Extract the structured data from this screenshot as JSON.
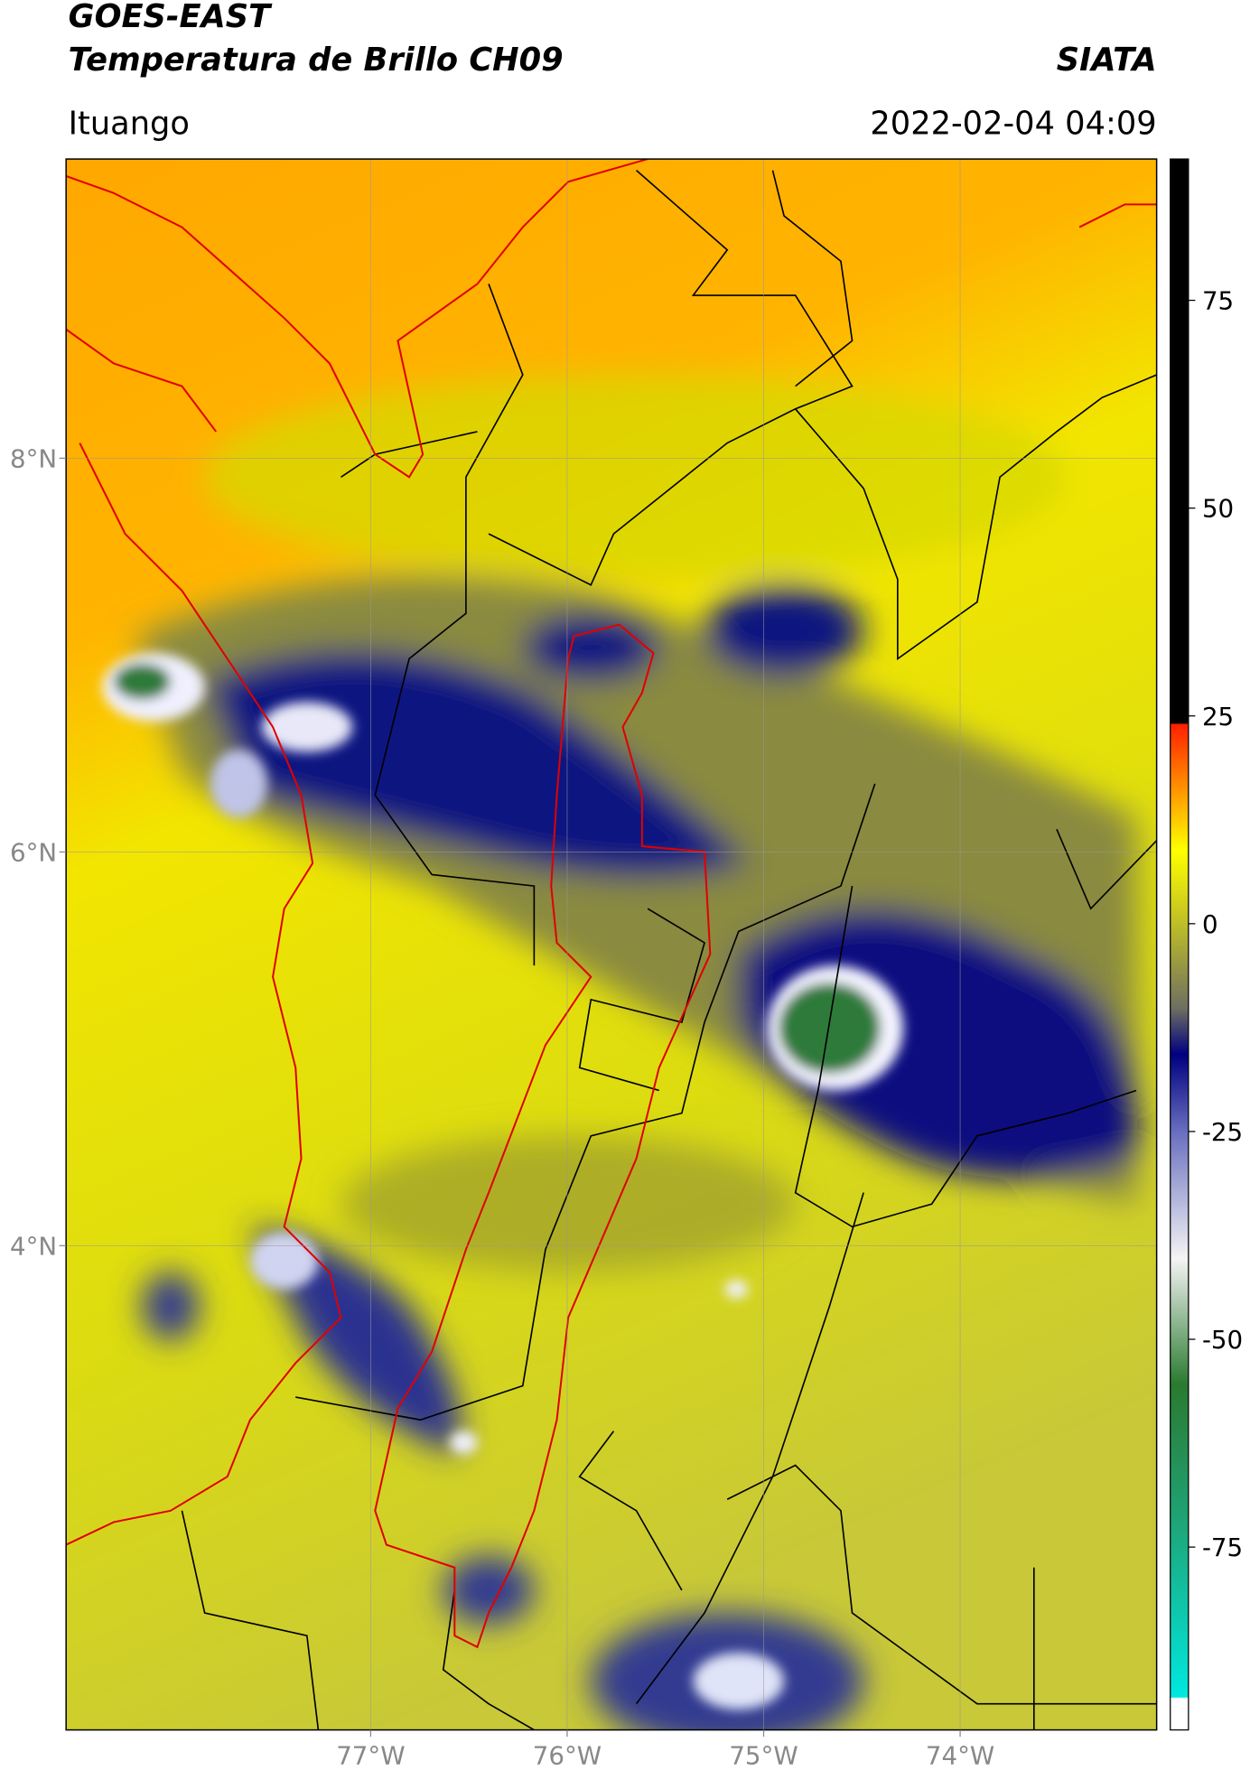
{
  "header": {
    "title": "GOES-EAST",
    "subtitle": "Temperatura de Brillo CH09",
    "source": "SIATA",
    "location": "Ituango",
    "datetime": "2022-02-04 04:09"
  },
  "map": {
    "xlim": [
      -78.55,
      -73.0
    ],
    "ylim": [
      1.54,
      9.52
    ],
    "xticks": [
      {
        "value": -77,
        "label": "77°W"
      },
      {
        "value": -76,
        "label": "76°W"
      },
      {
        "value": -75,
        "label": "75°W"
      },
      {
        "value": -74,
        "label": "74°W"
      }
    ],
    "yticks": [
      {
        "value": 8,
        "label": "8°N"
      },
      {
        "value": 6,
        "label": "6°N"
      },
      {
        "value": 4,
        "label": "4°N"
      }
    ]
  },
  "colorbar": {
    "lim": [
      -97,
      92
    ],
    "ticks": [
      75,
      50,
      25,
      0,
      -25,
      -50,
      -75
    ]
  }
}
